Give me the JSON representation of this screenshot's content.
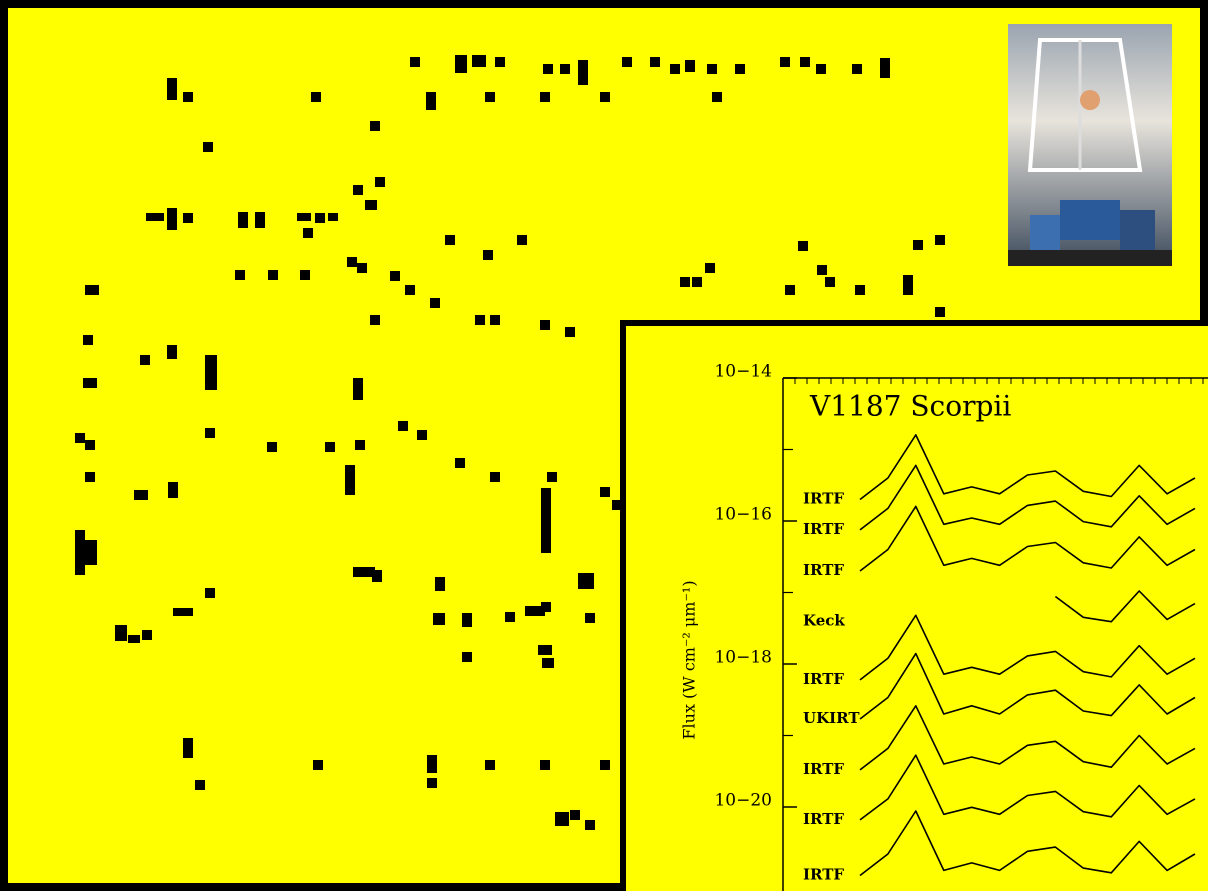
{
  "chart_data": {
    "type": "line",
    "title": "V1187 Scorpii",
    "y_label": "Flux (W cm⁻² μm⁻¹)",
    "log_y": true,
    "ylim": [
      1e-21,
      1e-14
    ],
    "yticks": [
      {
        "value": 1e-14,
        "label": "10−14"
      },
      {
        "value": 1e-16,
        "label": "10−16"
      },
      {
        "value": 1e-18,
        "label": "10−18"
      },
      {
        "value": 1e-20,
        "label": "10−20"
      }
    ],
    "yminorticks": [
      1e-15,
      1e-17,
      1e-19
    ],
    "categories": [
      null,
      null,
      null,
      null,
      null,
      null,
      null,
      null,
      null,
      null,
      null,
      null,
      null
    ],
    "series": [
      {
        "name": "IRTF",
        "color": "#000000",
        "values": [
          2e-16,
          4e-16,
          1.6e-15,
          2.4e-16,
          3e-16,
          2.4e-16,
          4.4e-16,
          5e-16,
          2.6e-16,
          2.2e-16,
          6e-16,
          2.4e-16,
          4e-16
        ]
      },
      {
        "name": "IRTF",
        "color": "#000000",
        "values": [
          7.5e-17,
          1.5e-16,
          6e-16,
          9e-17,
          1.1e-16,
          9e-17,
          1.65e-16,
          1.9e-16,
          9.8e-17,
          8.3e-17,
          2.25e-16,
          9e-17,
          1.5e-16
        ]
      },
      {
        "name": "IRTF",
        "color": "#000000",
        "values": [
          2e-17,
          4e-17,
          1.6e-16,
          2.4e-17,
          3e-17,
          2.4e-17,
          4.4e-17,
          5e-17,
          2.6e-17,
          2.2e-17,
          6e-17,
          2.4e-17,
          4e-17
        ]
      },
      {
        "name": "Keck",
        "color": "#000000",
        "values": [
          null,
          null,
          null,
          null,
          null,
          null,
          null,
          8.8e-18,
          4.5e-18,
          3.9e-18,
          1.05e-17,
          4.2e-18,
          7e-18
        ]
      },
      {
        "name": "IRTF",
        "color": "#000000",
        "values": [
          6e-19,
          1.2e-18,
          4.8e-18,
          7.2e-19,
          9e-19,
          7.2e-19,
          1.3e-18,
          1.5e-18,
          7.8e-19,
          6.6e-19,
          1.8e-18,
          7.2e-19,
          1.2e-18
        ]
      },
      {
        "name": "UKIRT",
        "color": "#000000",
        "values": [
          1.7e-19,
          3.4e-19,
          1.4e-18,
          2e-19,
          2.6e-19,
          2e-19,
          3.7e-19,
          4.3e-19,
          2.2e-19,
          1.9e-19,
          5.1e-19,
          2e-19,
          3.4e-19
        ]
      },
      {
        "name": "IRTF",
        "color": "#000000",
        "values": [
          3.3e-20,
          6.6e-20,
          2.6e-19,
          4e-20,
          5e-20,
          4e-20,
          7.3e-20,
          8.3e-20,
          4.3e-20,
          3.6e-20,
          1e-19,
          4e-20,
          6.6e-20
        ]
      },
      {
        "name": "IRTF",
        "color": "#000000",
        "values": [
          6.6e-21,
          1.3e-20,
          5.3e-20,
          7.9e-21,
          9.9e-21,
          7.9e-21,
          1.45e-20,
          1.65e-20,
          8.6e-21,
          7.3e-21,
          2e-20,
          7.9e-21,
          1.3e-20
        ]
      },
      {
        "name": "IRTF",
        "color": "#000000",
        "values": [
          1.1e-21,
          2.2e-21,
          8.8e-21,
          1.3e-21,
          1.65e-21,
          1.3e-21,
          2.4e-21,
          2.75e-21,
          1.4e-21,
          1.2e-21,
          3.3e-21,
          1.3e-21,
          2.2e-21
        ]
      }
    ]
  }
}
